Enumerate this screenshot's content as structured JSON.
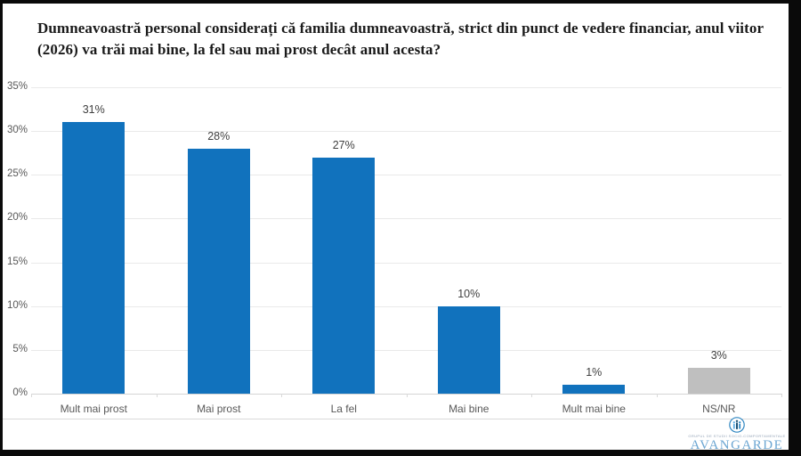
{
  "title": "Dumneavoastră personal considerați că familia dumneavoastră, strict din punct de vedere financiar, anul viitor (2026) va trăi mai bine, la fel sau mai prost decât anul acesta?",
  "chart_data": {
    "type": "bar",
    "title": "Dumneavoastră personal considerați că familia dumneavoastră, strict din punct de vedere financiar, anul viitor (2026) va trăi mai bine, la fel sau mai prost decât anul acesta?",
    "categories": [
      "Mult mai prost",
      "Mai prost",
      "La fel",
      "Mai bine",
      "Mult mai bine",
      "NS/NR"
    ],
    "values": [
      31,
      28,
      27,
      10,
      1,
      3
    ],
    "value_labels": [
      "31%",
      "28%",
      "27%",
      "10%",
      "1%",
      "3%"
    ],
    "bar_colors": [
      "#1172bd",
      "#1172bd",
      "#1172bd",
      "#1172bd",
      "#1172bd",
      "#bfbfbf"
    ],
    "xlabel": "",
    "ylabel": "",
    "ylim": [
      0,
      35
    ],
    "ytick_step": 5,
    "ytick_labels": [
      "0%",
      "5%",
      "10%",
      "15%",
      "20%",
      "25%",
      "30%",
      "35%"
    ],
    "grid": true,
    "legend_position": "none",
    "colors": {
      "bar_blue": "#1172bd",
      "bar_gray": "#bfbfbf",
      "gridline": "#e9e9e9",
      "axis_line": "#d5d5d5",
      "tick_text": "#595959",
      "value_text": "#404040"
    }
  },
  "footer": {
    "brand": "AVANGARDE",
    "tagline": "GRUPUL DE STUDII SOCIO-COMPORTAMENTALE",
    "brand_color": "#6ca6d2"
  }
}
